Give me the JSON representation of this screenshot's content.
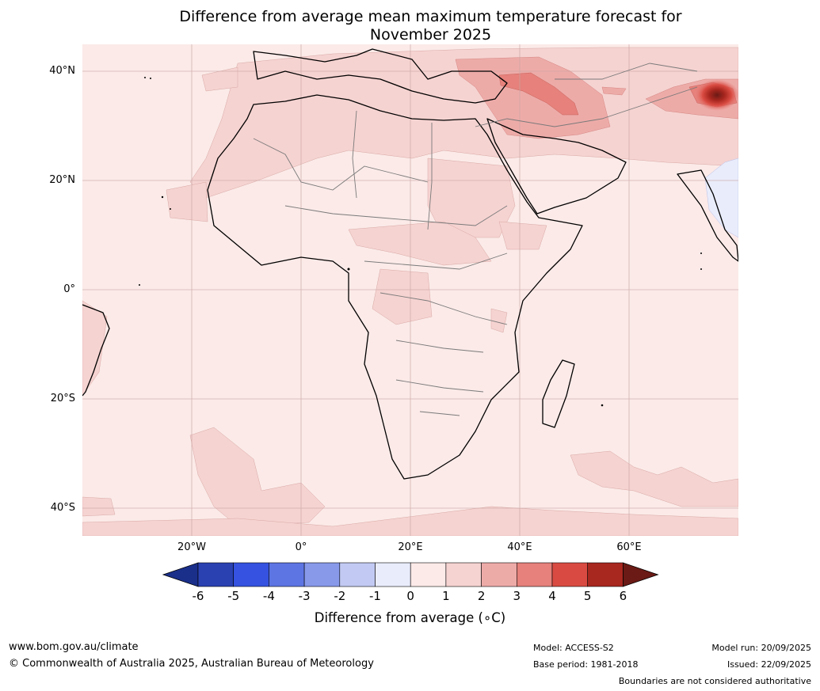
{
  "title": {
    "line1": "Difference from average mean maximum temperature forecast for",
    "line2": "November 2025"
  },
  "map": {
    "lat_labels": [
      "40°N",
      "20°N",
      "0°",
      "20°S",
      "40°S"
    ],
    "lon_labels": [
      "20°W",
      "0°",
      "20°E",
      "40°E",
      "60°E"
    ],
    "grid": true
  },
  "colorbar": {
    "ticks": [
      "-6",
      "-5",
      "-4",
      "-3",
      "-2",
      "-1",
      "0",
      "1",
      "2",
      "3",
      "4",
      "5",
      "6"
    ],
    "colors": [
      "#1a2f8a",
      "#2a41b2",
      "#3553e0",
      "#5d75e3",
      "#8899ea",
      "#c2caf3",
      "#e9ecfb",
      "#fbeae8",
      "#f5d3d1",
      "#edaba8",
      "#e6817b",
      "#d94b42",
      "#a8271f",
      "#6b1a15"
    ],
    "title": "Difference from average (∘C)"
  },
  "footer": {
    "url": "www.bom.gov.au/climate",
    "copyright": "© Commonwealth of Australia 2025, Australian Bureau of Meteorology",
    "model": "Model: ACCESS-S2",
    "base_period": "Base period: 1981-2018",
    "model_run": "Model run: 20/09/2025",
    "issued": "Issued: 22/09/2025",
    "disclaimer": "Boundaries are not considered authoritative"
  }
}
